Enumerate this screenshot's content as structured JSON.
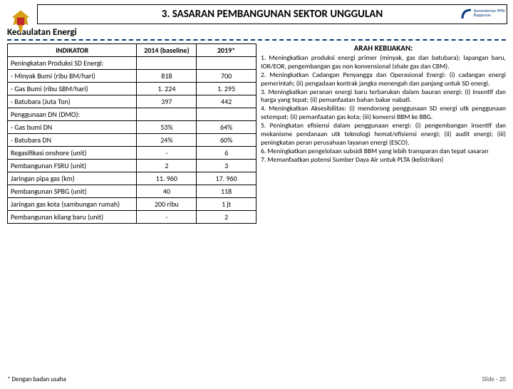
{
  "title": "3. SASARAN PEMBANGUNAN SEKTOR UNGGULAN",
  "subtitle": "Kedaulatan Energi",
  "table": {
    "headers": {
      "indikator": "INDIKATOR",
      "baseline": "2014 (baseline)",
      "target": "2019*"
    },
    "rows": [
      {
        "type": "section",
        "label": "Peningkatan Produksi SD Energi:"
      },
      {
        "label": "- Minyak Bumi (ribu BM/hari)",
        "baseline": "818",
        "target": "700"
      },
      {
        "label": "- Gas Bumi (ribu SBM/hari)",
        "baseline": "1. 224",
        "target": "1. 295"
      },
      {
        "label": "- Batubara (Juta Ton)",
        "baseline": "397",
        "target": "442"
      },
      {
        "type": "section",
        "label": "Penggunaan DN (DMO):"
      },
      {
        "label": "- Gas bumi DN",
        "baseline": "53%",
        "target": "64%"
      },
      {
        "label": "- Batubara DN",
        "baseline": "24%",
        "target": "60%"
      },
      {
        "label": "Regasifikasi onshore (unit)",
        "baseline": "-",
        "target": "6"
      },
      {
        "label": "Pembangunan FSRU (unit)",
        "baseline": "2",
        "target": "3"
      },
      {
        "label": "Jaringan pipa gas (km)",
        "baseline": "11. 960",
        "target": "17. 960"
      },
      {
        "label": "Pembangunan SPBG (unit)",
        "baseline": "40",
        "target": "118"
      },
      {
        "label": "Jaringan gas kota (sambungan rumah)",
        "baseline": "200 ribu",
        "target": "1 jt"
      },
      {
        "label": "Pembangunan kilang baru (unit)",
        "baseline": "-",
        "target": "2"
      }
    ]
  },
  "policy": {
    "title": "ARAH KEBIJAKAN:",
    "body": "1. Meningkatkan produksi energi primer (minyak, gas dan batubara): lapangan baru, IOR/EOR, pengembangan gas non konvensional (shale gas dan CBM).\n2. Meningkatkan Cadangan Penyangga dan Operasional Energi: (i) cadangan energi pemerintah; (ii) pengadaan kontrak jangka menengah dan panjang untuk SD energi.\n3. Meningkatkan peranan energi baru terbarukan dalam bauran energi: (i) insentif dan harga yang tepat; (ii) pemanfaatan bahan bakar nabati.\n4. Meningkatkan Aksesibilitas: (i) mendorong penggunaan SD energi utk penggunaan setempat; (ii) pemanfaatan gas kota; (iii) konversi BBM ke BBG.\n5. Peningkatan efisiensi dalam penggunaan energi: (i) pengembangan insentif dan mekanisme pendanaan utk teknologi hemat/efisiensi energi; (ii) audit energi; (iii) peningkatan peran perusahaan layanan energi (ESCO).\n6. Meningkatkan pengelolaan subsidi BBM yang lebih transparan dan tepat sasaran\n7. Memanfaatkan potensi Sumber Daya Air untuk PLTA (kelistrikan)"
  },
  "footnote": "* Dengan badan usaha",
  "slide_label": "Slide -",
  "slide_num": "20",
  "logo_right": "Kementerian PPN/\nBappenas",
  "colors": {
    "accent": "#0a3b7a",
    "emblem_gold": "#d4a017",
    "emblem_red": "#c1272d"
  }
}
